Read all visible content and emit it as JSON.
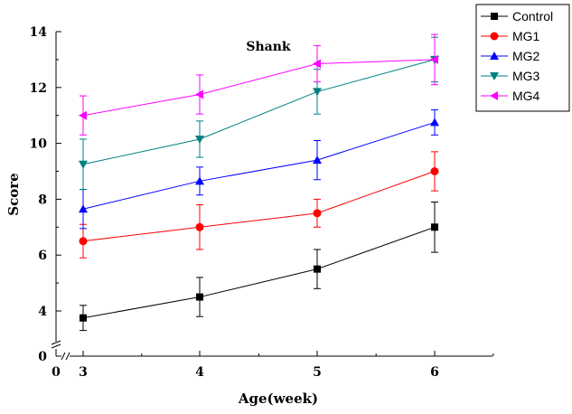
{
  "chart_data": {
    "type": "line",
    "title": "",
    "annotation": "Shank",
    "xlabel": "Age(week)",
    "ylabel": "Score",
    "x": [
      3,
      4,
      5,
      6
    ],
    "x_break_label": "0",
    "y_break_label": "0",
    "yticks": [
      4,
      6,
      8,
      10,
      12,
      14
    ],
    "ylim": [
      3.2,
      14
    ],
    "series": [
      {
        "name": "Control",
        "color": "#000000",
        "marker": "square",
        "values": [
          3.75,
          4.5,
          5.5,
          7.0
        ],
        "errors": [
          0.45,
          0.7,
          0.7,
          0.9
        ]
      },
      {
        "name": "MG1",
        "color": "#ff0000",
        "marker": "circle",
        "values": [
          6.5,
          7.0,
          7.5,
          9.0
        ],
        "errors": [
          0.6,
          0.8,
          0.5,
          0.7
        ]
      },
      {
        "name": "MG2",
        "color": "#0000ff",
        "marker": "triangle-up",
        "values": [
          7.65,
          8.65,
          9.4,
          10.75
        ],
        "errors": [
          0.7,
          0.5,
          0.7,
          0.45
        ]
      },
      {
        "name": "MG3",
        "color": "#008080",
        "marker": "triangle-down",
        "values": [
          9.25,
          10.15,
          11.85,
          13.0
        ],
        "errors": [
          0.9,
          0.65,
          0.8,
          0.8
        ]
      },
      {
        "name": "MG4",
        "color": "#ff00ff",
        "marker": "triangle-left",
        "values": [
          11.0,
          11.75,
          12.85,
          13.0
        ],
        "errors": [
          0.7,
          0.7,
          0.65,
          0.9
        ]
      }
    ],
    "legend_position": "top-right"
  }
}
